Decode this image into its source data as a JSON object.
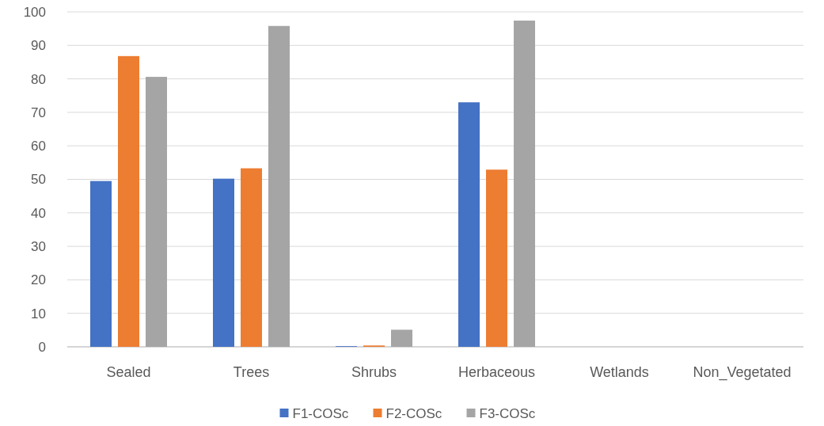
{
  "chart_data": {
    "type": "bar",
    "categories": [
      "Sealed",
      "Trees",
      "Shrubs",
      "Herbaceous",
      "Wetlands",
      "Non_Vegetated"
    ],
    "series": [
      {
        "name": "F1-COSc",
        "color": "#4472c4",
        "values": [
          49.5,
          50.2,
          0.2,
          73,
          0,
          0
        ]
      },
      {
        "name": "F2-COSc",
        "color": "#ed7d31",
        "values": [
          86.8,
          53.3,
          0.4,
          52.9,
          0,
          0
        ]
      },
      {
        "name": "F3-COSc",
        "color": "#a5a5a5",
        "values": [
          80.6,
          95.8,
          5.1,
          97.4,
          0,
          0
        ]
      }
    ],
    "ylim": [
      0,
      100
    ],
    "yticks": [
      0,
      10,
      20,
      30,
      40,
      50,
      60,
      70,
      80,
      90,
      100
    ],
    "grid": "y",
    "legend": "bottom"
  }
}
